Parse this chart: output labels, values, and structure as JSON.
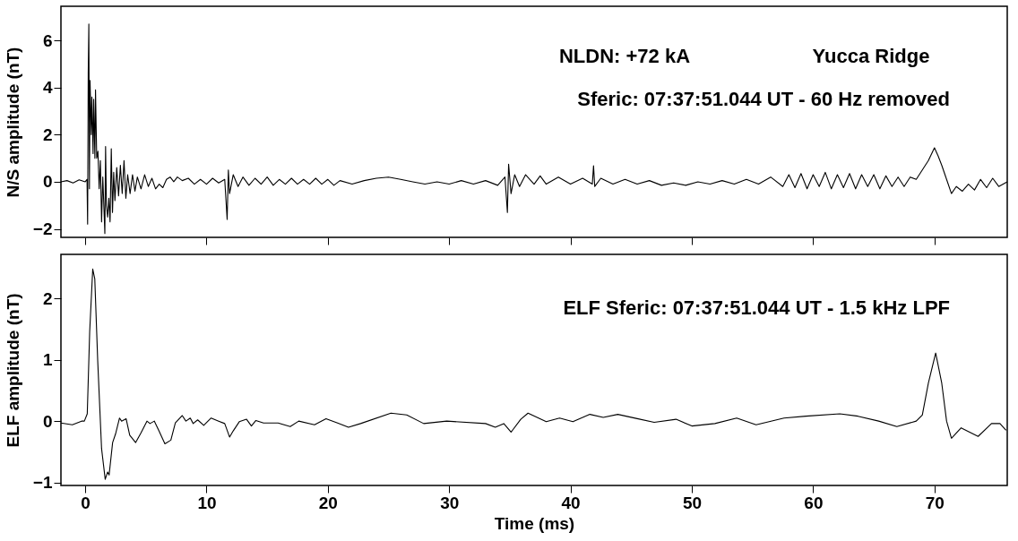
{
  "chart_data": [
    {
      "type": "line",
      "ylabel": "N/S amplitude (nT)",
      "xlim": [
        -2,
        76
      ],
      "ylim": [
        -2.36,
        7.45
      ],
      "xticks": [
        0,
        10,
        20,
        30,
        40,
        50,
        60,
        70
      ],
      "yticks": [
        -2,
        0,
        2,
        4,
        6
      ],
      "tick_labels": "y",
      "grid": false,
      "annotations": [
        "NLDN:  +72 kA",
        "Yucca Ridge",
        "Sferic:  07:37:51.044 UT - 60 Hz removed"
      ],
      "x": [
        -2,
        -1.5,
        -1,
        -0.5,
        0,
        0.15,
        0.2,
        0.25,
        0.3,
        0.35,
        0.4,
        0.5,
        0.55,
        0.65,
        0.7,
        0.8,
        0.85,
        0.95,
        1.05,
        1.15,
        1.25,
        1.35,
        1.45,
        1.55,
        1.62,
        1.68,
        1.75,
        1.85,
        1.95,
        2.05,
        2.15,
        2.25,
        2.35,
        2.45,
        2.6,
        2.75,
        2.9,
        3.05,
        3.2,
        3.35,
        3.5,
        3.7,
        3.9,
        4.1,
        4.3,
        4.6,
        4.9,
        5.2,
        5.5,
        5.8,
        6.1,
        6.4,
        6.7,
        7.0,
        7.3,
        7.6,
        8.0,
        8.5,
        9,
        9.5,
        10,
        10.5,
        11,
        11.5,
        11.7,
        11.8,
        11.9,
        12.2,
        12.6,
        13,
        13.5,
        14,
        14.5,
        15,
        15.5,
        16,
        16.5,
        17,
        17.5,
        18,
        18.5,
        19,
        19.5,
        20,
        20.5,
        21,
        22,
        23,
        24,
        25,
        26,
        27,
        28,
        29,
        30,
        31,
        32,
        33,
        34,
        34.6,
        34.8,
        34.9,
        35.1,
        35.4,
        35.8,
        36.3,
        37,
        37.5,
        38,
        39,
        40,
        41,
        41.8,
        41.9,
        42.0,
        42.5,
        43.5,
        44.5,
        45.5,
        46.5,
        47.5,
        48.5,
        49.5,
        50.5,
        51.5,
        52.5,
        53.5,
        54.5,
        55.5,
        56.5,
        57.5,
        58,
        58.5,
        59,
        59.5,
        60,
        60.5,
        61,
        61.5,
        62,
        62.5,
        63,
        63.5,
        64,
        64.5,
        65,
        65.5,
        66,
        66.5,
        67,
        67.5,
        68,
        68.5,
        69,
        69.5,
        70,
        70.3,
        70.6,
        71,
        71.4,
        71.8,
        72.3,
        72.8,
        73.3,
        73.8,
        74.3,
        74.8,
        75.3,
        76
      ],
      "series": [
        {
          "color": "#000000",
          "values": [
            0,
            0.05,
            -0.05,
            0.08,
            0,
            0.1,
            -1.8,
            4.6,
            6.7,
            -0.3,
            4.3,
            2.0,
            3.6,
            1.2,
            3.5,
            1.0,
            3.9,
            1.0,
            1.3,
            -0.3,
            0.9,
            -1.7,
            0.2,
            -1.2,
            -2.2,
            1.5,
            -1.0,
            -1.5,
            -0.7,
            -1.7,
            1.4,
            -1.3,
            0.4,
            -0.8,
            0.6,
            -0.6,
            0.7,
            -0.5,
            0.9,
            -0.7,
            0.3,
            -0.5,
            0.3,
            -0.4,
            0.2,
            -0.3,
            0.3,
            -0.2,
            0.15,
            -0.3,
            -0.1,
            -0.25,
            0.1,
            0.2,
            0.0,
            0.2,
            0.05,
            0.15,
            -0.1,
            0.1,
            -0.1,
            0.15,
            -0.05,
            0.1,
            -1.6,
            0.5,
            -0.5,
            0.3,
            -0.2,
            0.2,
            -0.15,
            0.15,
            -0.1,
            0.2,
            -0.15,
            0.1,
            -0.1,
            0.15,
            -0.1,
            0.1,
            -0.1,
            0.15,
            -0.1,
            0.1,
            -0.15,
            0.05,
            -0.1,
            0.05,
            0.15,
            0.2,
            0.1,
            0.0,
            -0.1,
            0.0,
            -0.1,
            0.05,
            -0.1,
            0.05,
            -0.15,
            0.2,
            -1.3,
            0.75,
            -0.5,
            0.3,
            -0.2,
            0.3,
            -0.1,
            0.25,
            -0.1,
            0.2,
            -0.1,
            0.15,
            -0.1,
            0.68,
            -0.2,
            0.15,
            -0.1,
            0.1,
            -0.1,
            0.05,
            -0.15,
            -0.05,
            -0.15,
            0.0,
            -0.1,
            0.05,
            -0.1,
            0.1,
            -0.1,
            0.2,
            -0.2,
            0.3,
            -0.25,
            0.35,
            -0.3,
            0.3,
            -0.2,
            0.4,
            -0.3,
            0.3,
            -0.25,
            0.35,
            -0.3,
            0.3,
            -0.2,
            0.3,
            -0.3,
            0.25,
            -0.2,
            0.2,
            -0.2,
            0.2,
            0.1,
            0.5,
            0.9,
            1.44,
            1.1,
            0.7,
            0.1,
            -0.5,
            -0.2,
            -0.4,
            -0.1,
            -0.35,
            0.1,
            -0.25,
            0.15,
            -0.2,
            0.0
          ]
        }
      ]
    },
    {
      "type": "line",
      "xlabel": "Time (ms)",
      "ylabel": "ELF amplitude (nT)",
      "xlim": [
        -2,
        76
      ],
      "ylim": [
        -1.05,
        2.72
      ],
      "xticks": [
        0,
        10,
        20,
        30,
        40,
        50,
        60,
        70
      ],
      "yticks": [
        -1,
        0,
        1,
        2
      ],
      "grid": false,
      "annotations": [
        "ELF Sferic:  07:37:51.044 UT - 1.5 kHz LPF"
      ],
      "x": [
        -2,
        -1.06,
        -0.3,
        -0.07,
        0.17,
        0.37,
        0.62,
        0.79,
        1.03,
        1.35,
        1.65,
        1.85,
        1.97,
        2.26,
        2.5,
        2.83,
        3.0,
        3.37,
        3.67,
        4.16,
        4.6,
        5.09,
        5.34,
        5.7,
        6.08,
        6.57,
        7.06,
        7.43,
        8.0,
        8.3,
        8.66,
        8.9,
        9.27,
        9.77,
        10.38,
        11.0,
        11.5,
        11.9,
        12.2,
        12.7,
        13.3,
        13.7,
        14.07,
        14.7,
        15.9,
        16.9,
        17.6,
        18.9,
        19.85,
        20.8,
        21.7,
        22.7,
        25.2,
        26.5,
        27.9,
        29.8,
        33.0,
        33.8,
        34.5,
        35.1,
        35.9,
        36.5,
        38.0,
        39.1,
        40.2,
        41.6,
        42.7,
        43.9,
        45.5,
        46.9,
        48.7,
        50.0,
        51.9,
        53.7,
        55.3,
        57.6,
        59.4,
        62.2,
        63.7,
        65.4,
        66.9,
        68.5,
        69.0,
        69.5,
        70.1,
        70.6,
        71.0,
        71.4,
        72.2,
        72.9,
        73.6,
        74.7,
        75.4,
        75.9
      ],
      "series": [
        {
          "color": "#000000",
          "values": [
            -0.03,
            -0.06,
            0,
            0,
            0.12,
            1.46,
            2.48,
            2.32,
            0.99,
            -0.45,
            -0.95,
            -0.83,
            -0.88,
            -0.35,
            -0.21,
            0.05,
            0,
            0.04,
            -0.23,
            -0.35,
            -0.19,
            0,
            -0.04,
            0,
            -0.16,
            -0.37,
            -0.31,
            -0.03,
            0.09,
            0,
            0.05,
            -0.04,
            0.02,
            -0.07,
            0.05,
            0,
            -0.04,
            -0.26,
            -0.16,
            -0.01,
            0.03,
            -0.08,
            0.01,
            -0.03,
            -0.03,
            -0.09,
            0,
            -0.06,
            0.04,
            -0.03,
            -0.1,
            -0.04,
            0.13,
            0.1,
            -0.04,
            0,
            -0.04,
            -0.1,
            -0.04,
            -0.18,
            0.03,
            0.13,
            -0.01,
            0.05,
            -0.01,
            0.11,
            0.06,
            0.11,
            0.04,
            -0.02,
            0.03,
            -0.08,
            -0.04,
            0.05,
            -0.06,
            0.05,
            0.08,
            0.12,
            0.08,
            0,
            -0.09,
            0,
            0.1,
            0.62,
            1.11,
            0.62,
            0,
            -0.28,
            -0.11,
            -0.18,
            -0.25,
            -0.04,
            -0.04,
            -0.15
          ]
        }
      ]
    }
  ]
}
